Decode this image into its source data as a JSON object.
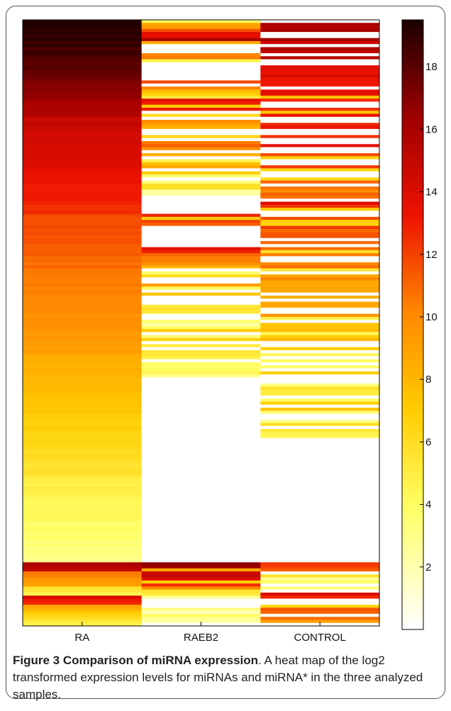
{
  "chart_data": {
    "type": "heatmap",
    "title": "",
    "xlabel": "",
    "ylabel": "",
    "categories": [
      "RA",
      "RAEB2",
      "CONTROL"
    ],
    "colormap": "hot (reversed: white → yellow → orange → red → black)",
    "colorbar": {
      "range": [
        0,
        19.5
      ],
      "ticks": [
        2,
        4,
        6,
        8,
        10,
        12,
        14,
        16,
        18
      ],
      "tick_labels": [
        "2",
        "4",
        "6",
        "8",
        "10",
        "12",
        "14",
        "16",
        "18"
      ]
    },
    "rows_approx": 200,
    "note": "Per-miRNA values sampled approximately from the colors; RA sorted descending, second block of rows below.",
    "segments": {
      "RA": [
        {
          "start": 0,
          "end": 0.08,
          "v0": 19.5,
          "v1": 18.0
        },
        {
          "start": 0.08,
          "end": 0.16,
          "v0": 18.0,
          "v1": 15.5
        },
        {
          "start": 0.16,
          "end": 0.32,
          "v0": 15.0,
          "v1": 12.5
        },
        {
          "start": 0.32,
          "end": 0.55,
          "v0": 12.0,
          "v1": 9.0
        },
        {
          "start": 0.55,
          "end": 0.75,
          "v0": 8.7,
          "v1": 5.5
        },
        {
          "start": 0.75,
          "end": 0.894,
          "v0": 5.2,
          "v1": 3.0
        },
        {
          "start": 0.894,
          "end": 0.91,
          "v0": 16.0,
          "v1": 15.0
        },
        {
          "start": 0.91,
          "end": 0.935,
          "v0": 11.0,
          "v1": 8.5
        },
        {
          "start": 0.935,
          "end": 0.95,
          "v0": 6.0,
          "v1": 4.0
        },
        {
          "start": 0.95,
          "end": 0.965,
          "v0": 14.5,
          "v1": 12.0
        },
        {
          "start": 0.965,
          "end": 1.0,
          "v0": 9.0,
          "v1": 4.5
        }
      ],
      "RAEB2": [
        {
          "start": 0,
          "end": 0.035,
          "v0": 7.0,
          "v1": 16.0
        },
        {
          "start": 0.035,
          "end": 0.07,
          "v0": 16.0,
          "v1": 8.0
        },
        {
          "start": 0.07,
          "end": 0.1,
          "v0": 0.0,
          "v1": 0.0
        },
        {
          "start": 0.1,
          "end": 0.13,
          "v0": 12.5,
          "v1": 5.0
        },
        {
          "start": 0.13,
          "end": 0.2,
          "v0": 14.0,
          "v1": 6.0
        },
        {
          "start": 0.2,
          "end": 0.29,
          "v0": 11.0,
          "v1": 4.0
        },
        {
          "start": 0.29,
          "end": 0.32,
          "v0": 0.0,
          "v1": 0.0
        },
        {
          "start": 0.32,
          "end": 0.342,
          "v0": 13.0,
          "v1": 11.5
        },
        {
          "start": 0.342,
          "end": 0.375,
          "v0": 0.0,
          "v1": 0.0
        },
        {
          "start": 0.375,
          "end": 0.43,
          "v0": 14.0,
          "v1": 4.5
        },
        {
          "start": 0.43,
          "end": 0.51,
          "v0": 9.0,
          "v1": 3.5
        },
        {
          "start": 0.51,
          "end": 0.59,
          "v0": 7.5,
          "v1": 3.0
        },
        {
          "start": 0.59,
          "end": 0.895,
          "v0": 0.0,
          "v1": 0.0
        },
        {
          "start": 0.895,
          "end": 0.95,
          "v0": 17.5,
          "v1": 9.0
        },
        {
          "start": 0.95,
          "end": 1.0,
          "v0": 5.0,
          "v1": 2.0
        }
      ],
      "CONTROL": [
        {
          "start": 0,
          "end": 0.16,
          "v0": 16.0,
          "v1": 13.0
        },
        {
          "start": 0.16,
          "end": 0.3,
          "v0": 14.0,
          "v1": 10.0
        },
        {
          "start": 0.3,
          "end": 0.38,
          "v0": 13.5,
          "v1": 10.0
        },
        {
          "start": 0.38,
          "end": 0.47,
          "v0": 10.5,
          "v1": 8.5
        },
        {
          "start": 0.47,
          "end": 0.55,
          "v0": 9.5,
          "v1": 6.5
        },
        {
          "start": 0.55,
          "end": 0.62,
          "v0": 8.0,
          "v1": 5.0
        },
        {
          "start": 0.62,
          "end": 0.69,
          "v0": 7.5,
          "v1": 4.5
        },
        {
          "start": 0.69,
          "end": 0.895,
          "v0": 0.0,
          "v1": 0.0
        },
        {
          "start": 0.895,
          "end": 0.92,
          "v0": 12.0,
          "v1": 10.0
        },
        {
          "start": 0.92,
          "end": 0.945,
          "v0": 5.0,
          "v1": 3.0
        },
        {
          "start": 0.945,
          "end": 1.0,
          "v0": 13.5,
          "v1": 9.0
        }
      ]
    }
  },
  "caption": {
    "label": "Figure 3 Comparison of miRNA expression",
    "text": ". A heat map of the log2 transformed expression levels for miRNAs and miRNA* in the three analyzed samples."
  }
}
